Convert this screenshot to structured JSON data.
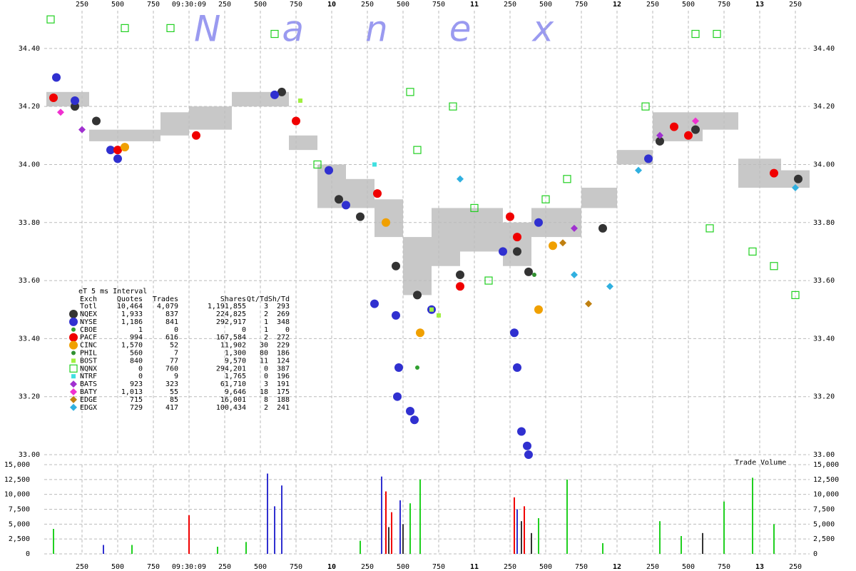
{
  "chart_data": [
    {
      "type": "scatter",
      "watermark": "Nanex",
      "xlim": [
        7.985,
        13.35
      ],
      "xticks": [
        {
          "value": 8.25,
          "label": "250"
        },
        {
          "value": 8.5,
          "label": "500"
        },
        {
          "value": 8.75,
          "label": "750"
        },
        {
          "value": 9,
          "label": "09:30:09"
        },
        {
          "value": 9.25,
          "label": "250"
        },
        {
          "value": 9.5,
          "label": "500"
        },
        {
          "value": 9.75,
          "label": "750"
        },
        10,
        {
          "value": 10.25,
          "label": "250"
        },
        {
          "value": 10.5,
          "label": "500"
        },
        {
          "value": 10.75,
          "label": "750"
        },
        11,
        {
          "value": 11.25,
          "label": "250"
        },
        {
          "value": 11.5,
          "label": "500"
        },
        {
          "value": 11.75,
          "label": "750"
        },
        12,
        {
          "value": 12.25,
          "label": "250"
        },
        {
          "value": 12.5,
          "label": "500"
        },
        {
          "value": 12.75,
          "label": "750"
        },
        13,
        {
          "value": 13.25,
          "label": "250"
        }
      ],
      "ylim": [
        33.0,
        34.53
      ],
      "yticks": [
        {
          "value": 33.0,
          "label": "33.00"
        },
        {
          "value": 33.2,
          "label": "33.20"
        },
        {
          "value": 33.4,
          "label": "33.40"
        },
        {
          "value": 33.6,
          "label": "33.60"
        },
        {
          "value": 33.8,
          "label": "33.80"
        },
        {
          "value": 34.0,
          "label": "34.00"
        },
        {
          "value": 34.2,
          "label": "34.20"
        },
        {
          "value": 34.4,
          "label": "34.40"
        }
      ],
      "grid": true,
      "nbbo": {
        "color": "#c8c8c8",
        "x": [
          8.0,
          8.3,
          8.6,
          8.8,
          9.0,
          9.3,
          9.7,
          9.9,
          10.1,
          10.3,
          10.5,
          10.7,
          10.9,
          11.2,
          11.4,
          11.75,
          12.0,
          12.25,
          12.6,
          12.85,
          13.15
        ],
        "low": [
          34.2,
          34.08,
          34.08,
          34.1,
          34.12,
          34.2,
          34.05,
          33.85,
          33.85,
          33.75,
          33.55,
          33.65,
          33.7,
          33.65,
          33.75,
          33.85,
          34.0,
          34.08,
          34.12,
          33.92,
          33.92
        ],
        "high": [
          34.25,
          34.12,
          34.12,
          34.18,
          34.2,
          34.25,
          34.1,
          34.0,
          33.95,
          33.88,
          33.75,
          33.85,
          33.85,
          33.8,
          33.85,
          33.92,
          34.05,
          34.18,
          34.18,
          34.02,
          33.98
        ]
      },
      "table": {
        "title": "eT 5 ms Interval",
        "columns": [
          "Exch",
          "Quotes",
          "Trades",
          "Shares",
          "Qt/Td",
          "Sh/Td"
        ],
        "total_label": "Totl",
        "totals": [
          "10,464",
          "4,079",
          "1,191,855",
          "3",
          "293"
        ]
      },
      "series": [
        {
          "name": "NQEX",
          "color": "#333333",
          "marker": "circle",
          "stats": [
            "1,933",
            "837",
            "224,825",
            "2",
            "269"
          ],
          "x": [
            8.2,
            8.35,
            9.65,
            10.05,
            10.2,
            10.45,
            10.6,
            10.9,
            11.3,
            11.38,
            11.9,
            12.3,
            12.55,
            13.27
          ],
          "values": [
            34.2,
            34.15,
            34.25,
            33.88,
            33.82,
            33.65,
            33.55,
            33.62,
            33.7,
            33.63,
            33.78,
            34.08,
            34.12,
            33.95
          ]
        },
        {
          "name": "NYSE",
          "color": "#3030d0",
          "marker": "circle",
          "stats": [
            "1,186",
            "841",
            "292,917",
            "1",
            "348"
          ],
          "x": [
            8.07,
            8.2,
            8.45,
            8.5,
            9.6,
            9.98,
            10.1,
            10.3,
            10.45,
            10.47,
            10.46,
            10.55,
            10.58,
            10.7,
            11.28,
            11.3,
            11.33,
            11.37,
            11.38,
            11.2,
            11.45,
            12.22
          ],
          "values": [
            34.3,
            34.22,
            34.05,
            34.02,
            34.24,
            33.98,
            33.86,
            33.52,
            33.48,
            33.3,
            33.2,
            33.15,
            33.12,
            33.5,
            33.42,
            33.3,
            33.08,
            33.03,
            33.0,
            33.7,
            33.8,
            34.02
          ]
        },
        {
          "name": "CBOE",
          "color": "#30a030",
          "marker": "dot",
          "stats": [
            "1",
            "0",
            "0",
            "1",
            "0"
          ],
          "x": [
            10.6
          ],
          "values": [
            33.3
          ]
        },
        {
          "name": "PACF",
          "color": "#f00000",
          "marker": "circle",
          "stats": [
            "994",
            "616",
            "167,584",
            "2",
            "272"
          ],
          "x": [
            8.05,
            8.5,
            9.05,
            9.75,
            10.32,
            10.9,
            11.25,
            11.3,
            12.4,
            12.5,
            13.1
          ],
          "values": [
            34.23,
            34.05,
            34.1,
            34.15,
            33.9,
            33.58,
            33.82,
            33.75,
            34.13,
            34.1,
            33.97
          ]
        },
        {
          "name": "CINC",
          "color": "#f0a000",
          "marker": "circle",
          "stats": [
            "1,570",
            "52",
            "11,902",
            "30",
            "229"
          ],
          "x": [
            8.55,
            10.38,
            10.62,
            11.45,
            11.55
          ],
          "values": [
            34.06,
            33.8,
            33.42,
            33.5,
            33.72
          ]
        },
        {
          "name": "PHIL",
          "color": "#309030",
          "marker": "dot",
          "stats": [
            "560",
            "7",
            "1,300",
            "80",
            "186"
          ],
          "x": [
            11.42
          ],
          "values": [
            33.62
          ]
        },
        {
          "name": "BOST",
          "color": "#a0f040",
          "marker": "square",
          "stats": [
            "840",
            "77",
            "9,570",
            "11",
            "124"
          ],
          "x": [
            9.78,
            10.7,
            10.75
          ],
          "values": [
            34.22,
            33.5,
            33.48
          ]
        },
        {
          "name": "NQNX",
          "color": "#20d020",
          "marker": "square-open",
          "stats": [
            "0",
            "760",
            "294,201",
            "0",
            "387"
          ],
          "x": [
            8.03,
            8.55,
            8.87,
            9.6,
            10.55,
            10.6,
            10.85,
            11.1,
            11.5,
            11.65,
            12.2,
            12.55,
            12.7,
            12.65,
            12.95,
            13.1,
            13.25,
            11.0,
            9.9
          ],
          "values": [
            34.5,
            34.47,
            34.47,
            34.45,
            34.25,
            34.05,
            34.2,
            33.6,
            33.88,
            33.95,
            34.2,
            34.45,
            34.45,
            33.78,
            33.7,
            33.65,
            33.55,
            33.85,
            34.0
          ]
        },
        {
          "name": "NTRF",
          "color": "#40e0e0",
          "marker": "square",
          "stats": [
            "0",
            "9",
            "1,765",
            "0",
            "196"
          ],
          "x": [
            10.3
          ],
          "values": [
            34.0
          ]
        },
        {
          "name": "BATS",
          "color": "#a030d0",
          "marker": "diamond",
          "stats": [
            "923",
            "323",
            "61,710",
            "3",
            "191"
          ],
          "x": [
            8.25,
            11.7,
            12.3
          ],
          "values": [
            34.12,
            33.78,
            34.1
          ]
        },
        {
          "name": "BATY",
          "color": "#f030d0",
          "marker": "diamond",
          "stats": [
            "1,013",
            "55",
            "9,646",
            "18",
            "175"
          ],
          "x": [
            8.1,
            12.55
          ],
          "values": [
            34.18,
            34.15
          ]
        },
        {
          "name": "EDGE",
          "color": "#c08010",
          "marker": "diamond",
          "stats": [
            "715",
            "85",
            "16,001",
            "8",
            "188"
          ],
          "x": [
            11.62,
            11.8
          ],
          "values": [
            33.73,
            33.52
          ]
        },
        {
          "name": "EDGX",
          "color": "#30b0e0",
          "marker": "diamond",
          "stats": [
            "729",
            "417",
            "100,434",
            "2",
            "241"
          ],
          "x": [
            10.9,
            11.7,
            11.95,
            12.15,
            13.25
          ],
          "values": [
            33.95,
            33.62,
            33.58,
            33.98,
            33.92
          ]
        }
      ]
    },
    {
      "type": "bar",
      "title": "Trade Volume",
      "ylim": [
        0,
        15000
      ],
      "yticks": [
        0,
        {
          "value": 2500,
          "label": "2,500"
        },
        {
          "value": 5000,
          "label": "5,000"
        },
        {
          "value": 7500,
          "label": "7,500"
        },
        {
          "value": 10000,
          "label": "10,000"
        },
        {
          "value": 12500,
          "label": "12,500"
        },
        {
          "value": 15000,
          "label": "15,000"
        }
      ],
      "series": [
        {
          "color": "#20d020",
          "x": [
            8.05,
            9.4,
            10.55,
            10.62,
            11.45,
            11.65,
            12.3,
            12.75,
            12.95,
            13.1,
            8.6,
            9.2,
            10.2,
            11.9,
            12.45
          ],
          "values": [
            4200,
            2000,
            8500,
            12500,
            6000,
            12500,
            5500,
            8800,
            12800,
            5000,
            1500,
            1200,
            2200,
            1800,
            3000
          ]
        },
        {
          "color": "#3030d0",
          "x": [
            9.55,
            9.65,
            10.35,
            10.48,
            11.3,
            8.4,
            9.6
          ],
          "values": [
            13500,
            11500,
            13000,
            9000,
            7500,
            1500,
            8000
          ]
        },
        {
          "color": "#f00000",
          "x": [
            9.0,
            10.38,
            11.28,
            11.35,
            10.42
          ],
          "values": [
            6500,
            10500,
            9500,
            8000,
            7000
          ]
        },
        {
          "color": "#333333",
          "x": [
            10.5,
            11.4,
            12.6,
            10.4,
            11.33
          ],
          "values": [
            5000,
            3500,
            3500,
            4500,
            5500
          ]
        }
      ]
    }
  ]
}
